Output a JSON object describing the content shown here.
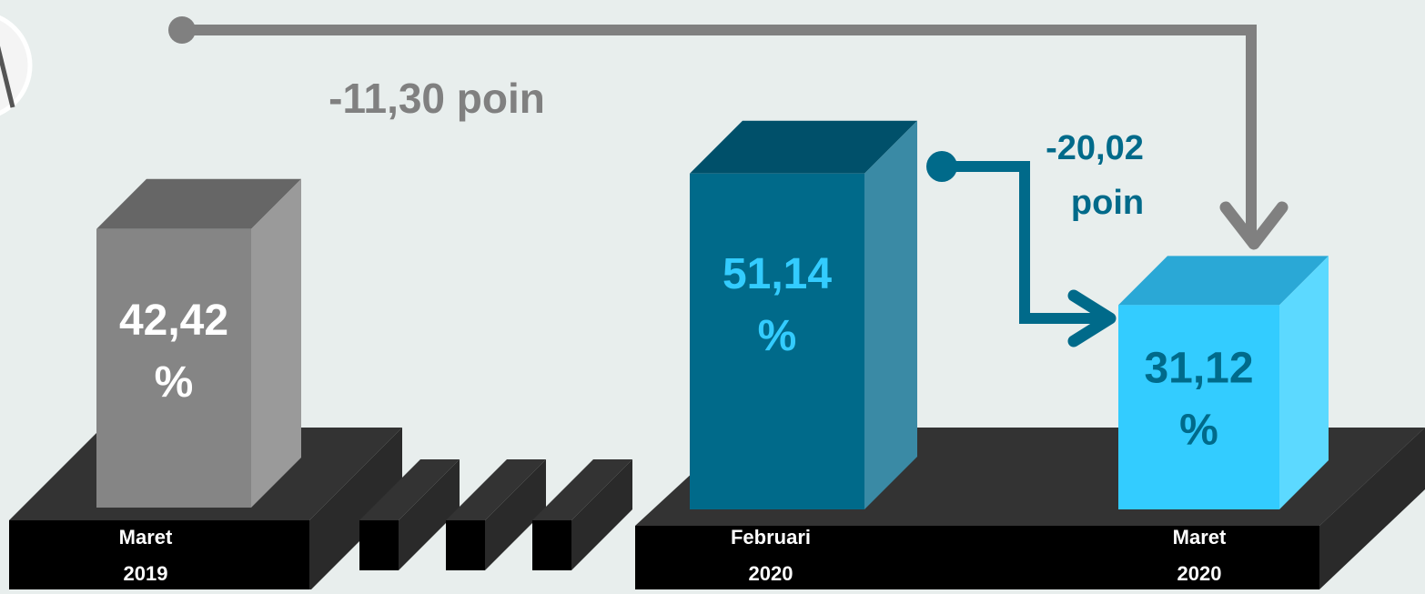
{
  "chart_data": {
    "type": "bar",
    "categories": [
      "Maret 2019",
      "Februari 2020",
      "Maret 2020"
    ],
    "series": [
      {
        "values": [
          42.42,
          51.14,
          31.12
        ]
      }
    ],
    "bars": [
      {
        "period_line1": "Maret",
        "period_line2": "2019",
        "value": 42.42,
        "value_label": "42,42",
        "unit": "%",
        "front_color": "#858585",
        "top_color": "#666666",
        "side_color": "#9a9a9a",
        "label_color": "#ffffff"
      },
      {
        "period_line1": "Februari",
        "period_line2": "2020",
        "value": 51.14,
        "value_label": "51,14",
        "unit": "%",
        "front_color": "#006a8a",
        "top_color": "#00506a",
        "side_color": "#3a8aa5",
        "label_color": "#33ccff"
      },
      {
        "period_line1": "Maret",
        "period_line2": "2020",
        "value": 31.12,
        "value_label": "31,12",
        "unit": "%",
        "front_color": "#33ccff",
        "top_color": "#2aa8d6",
        "side_color": "#5cd9ff",
        "label_color": "#006a8a"
      }
    ],
    "annotations": [
      {
        "from": "Maret 2019",
        "to": "Maret 2020",
        "change": -11.3,
        "line1": "-11,30 poin",
        "color": "#808080"
      },
      {
        "from": "Februari 2020",
        "to": "Maret 2020",
        "change": -20.02,
        "line1": "-20,02",
        "line2": "poin",
        "color": "#006a8a"
      }
    ]
  }
}
